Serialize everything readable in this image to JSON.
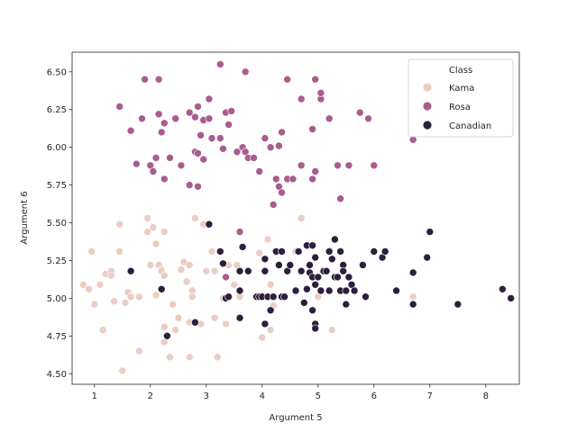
{
  "chart_data": {
    "type": "scatter",
    "title": "",
    "xlabel": "Argument 5",
    "ylabel": "Argument 6",
    "xlim": [
      0.6,
      8.6
    ],
    "ylim": [
      4.43,
      6.63
    ],
    "xticks": [
      "1",
      "2",
      "3",
      "4",
      "5",
      "6",
      "7",
      "8"
    ],
    "yticks": [
      "4.50",
      "4.75",
      "5.00",
      "5.25",
      "5.50",
      "5.75",
      "6.00",
      "6.25",
      "6.50"
    ],
    "grid": false,
    "legend": {
      "title": "Class",
      "placement": "upper right"
    },
    "series": [
      {
        "name": "Kama",
        "color": "#ebcdc3",
        "points": [
          [
            0.8,
            5.09
          ],
          [
            0.9,
            5.06
          ],
          [
            0.95,
            5.31
          ],
          [
            1.0,
            4.96
          ],
          [
            1.1,
            5.09
          ],
          [
            1.15,
            4.79
          ],
          [
            1.2,
            5.16
          ],
          [
            1.3,
            5.18
          ],
          [
            1.3,
            5.15
          ],
          [
            1.35,
            4.98
          ],
          [
            1.45,
            5.49
          ],
          [
            1.45,
            5.31
          ],
          [
            1.5,
            4.52
          ],
          [
            1.55,
            4.97
          ],
          [
            1.6,
            5.04
          ],
          [
            1.65,
            5.01
          ],
          [
            1.8,
            4.65
          ],
          [
            1.8,
            5.01
          ],
          [
            1.95,
            5.44
          ],
          [
            1.95,
            5.53
          ],
          [
            2.0,
            5.22
          ],
          [
            2.0,
            5.88
          ],
          [
            2.05,
            5.47
          ],
          [
            2.1,
            5.36
          ],
          [
            2.1,
            5.02
          ],
          [
            2.15,
            5.22
          ],
          [
            2.2,
            5.19
          ],
          [
            2.2,
            5.18
          ],
          [
            2.25,
            5.15
          ],
          [
            2.25,
            5.44
          ],
          [
            2.25,
            4.81
          ],
          [
            2.25,
            4.71
          ],
          [
            2.35,
            4.61
          ],
          [
            2.4,
            4.96
          ],
          [
            2.45,
            4.79
          ],
          [
            2.5,
            4.87
          ],
          [
            2.55,
            5.19
          ],
          [
            2.6,
            5.24
          ],
          [
            2.65,
            5.11
          ],
          [
            2.7,
            5.22
          ],
          [
            2.7,
            4.61
          ],
          [
            2.7,
            4.84
          ],
          [
            2.75,
            5.05
          ],
          [
            2.75,
            5.01
          ],
          [
            2.8,
            5.53
          ],
          [
            2.9,
            4.83
          ],
          [
            2.95,
            5.49
          ],
          [
            3.0,
            5.18
          ],
          [
            3.05,
            5.49
          ],
          [
            3.1,
            5.31
          ],
          [
            3.15,
            4.87
          ],
          [
            3.15,
            5.18
          ],
          [
            3.2,
            4.61
          ],
          [
            3.3,
            5.0
          ],
          [
            3.35,
            4.83
          ],
          [
            3.4,
            5.22
          ],
          [
            3.5,
            5.09
          ],
          [
            3.55,
            5.22
          ],
          [
            3.6,
            5.01
          ],
          [
            3.95,
            5.3
          ],
          [
            4.0,
            4.74
          ],
          [
            4.1,
            5.39
          ],
          [
            4.15,
            5.09
          ],
          [
            4.15,
            4.79
          ],
          [
            4.2,
            4.95
          ],
          [
            4.35,
            5.01
          ],
          [
            4.45,
            5.18
          ],
          [
            4.6,
            5.31
          ],
          [
            4.7,
            5.53
          ],
          [
            5.0,
            5.01
          ],
          [
            5.25,
            4.79
          ],
          [
            6.7,
            5.01
          ]
        ]
      },
      {
        "name": "Rosa",
        "color": "#a95c8e",
        "points": [
          [
            1.45,
            6.27
          ],
          [
            1.65,
            6.11
          ],
          [
            1.75,
            5.89
          ],
          [
            1.85,
            6.19
          ],
          [
            1.9,
            6.45
          ],
          [
            2.0,
            5.88
          ],
          [
            2.05,
            5.84
          ],
          [
            2.1,
            5.93
          ],
          [
            2.15,
            6.45
          ],
          [
            2.15,
            6.22
          ],
          [
            2.2,
            6.1
          ],
          [
            2.25,
            6.16
          ],
          [
            2.25,
            5.79
          ],
          [
            2.35,
            5.93
          ],
          [
            2.45,
            6.19
          ],
          [
            2.55,
            5.88
          ],
          [
            2.7,
            6.23
          ],
          [
            2.7,
            5.75
          ],
          [
            2.8,
            6.2
          ],
          [
            2.8,
            5.97
          ],
          [
            2.85,
            5.74
          ],
          [
            2.85,
            6.27
          ],
          [
            2.85,
            5.96
          ],
          [
            2.9,
            6.08
          ],
          [
            2.95,
            6.18
          ],
          [
            2.95,
            5.92
          ],
          [
            3.05,
            6.32
          ],
          [
            3.05,
            6.19
          ],
          [
            3.1,
            6.06
          ],
          [
            3.25,
            6.55
          ],
          [
            3.25,
            6.06
          ],
          [
            3.3,
            5.99
          ],
          [
            3.35,
            6.23
          ],
          [
            3.4,
            6.15
          ],
          [
            3.45,
            6.24
          ],
          [
            3.55,
            5.97
          ],
          [
            3.65,
            6.0
          ],
          [
            3.7,
            6.5
          ],
          [
            3.7,
            5.97
          ],
          [
            3.75,
            5.93
          ],
          [
            3.85,
            5.93
          ],
          [
            3.95,
            5.84
          ],
          [
            4.05,
            6.06
          ],
          [
            4.15,
            6.0
          ],
          [
            4.2,
            5.62
          ],
          [
            4.25,
            5.79
          ],
          [
            4.3,
            6.01
          ],
          [
            4.3,
            5.74
          ],
          [
            4.35,
            6.1
          ],
          [
            4.35,
            5.7
          ],
          [
            4.45,
            6.45
          ],
          [
            4.45,
            5.79
          ],
          [
            4.55,
            5.79
          ],
          [
            4.7,
            6.32
          ],
          [
            4.7,
            5.88
          ],
          [
            4.9,
            6.12
          ],
          [
            4.9,
            5.79
          ],
          [
            4.95,
            6.45
          ],
          [
            4.95,
            5.84
          ],
          [
            5.05,
            6.32
          ],
          [
            5.05,
            6.36
          ],
          [
            5.2,
            6.19
          ],
          [
            5.35,
            5.88
          ],
          [
            5.4,
            5.66
          ],
          [
            5.55,
            5.88
          ],
          [
            5.75,
            6.23
          ],
          [
            5.9,
            6.19
          ],
          [
            6.0,
            5.88
          ],
          [
            6.7,
            6.05
          ],
          [
            3.35,
            5.14
          ],
          [
            3.6,
            5.44
          ]
        ]
      },
      {
        "name": "Canadian",
        "color": "#2d1e3e",
        "points": [
          [
            1.65,
            5.18
          ],
          [
            2.2,
            5.06
          ],
          [
            2.3,
            4.75
          ],
          [
            2.8,
            4.84
          ],
          [
            3.05,
            5.49
          ],
          [
            3.25,
            5.31
          ],
          [
            3.3,
            5.23
          ],
          [
            3.35,
            5.0
          ],
          [
            3.4,
            5.01
          ],
          [
            3.6,
            5.05
          ],
          [
            3.6,
            5.18
          ],
          [
            3.6,
            4.87
          ],
          [
            3.65,
            5.34
          ],
          [
            3.75,
            5.18
          ],
          [
            3.9,
            5.01
          ],
          [
            3.95,
            5.01
          ],
          [
            4.0,
            5.01
          ],
          [
            4.05,
            4.83
          ],
          [
            4.05,
            5.26
          ],
          [
            4.05,
            5.18
          ],
          [
            4.1,
            5.01
          ],
          [
            4.15,
            4.92
          ],
          [
            4.2,
            5.01
          ],
          [
            4.25,
            5.31
          ],
          [
            4.3,
            5.22
          ],
          [
            4.35,
            5.31
          ],
          [
            4.35,
            5.01
          ],
          [
            4.4,
            5.01
          ],
          [
            4.45,
            5.18
          ],
          [
            4.5,
            5.22
          ],
          [
            4.6,
            5.05
          ],
          [
            4.65,
            5.31
          ],
          [
            4.7,
            5.18
          ],
          [
            4.75,
            4.97
          ],
          [
            4.8,
            5.35
          ],
          [
            4.8,
            5.06
          ],
          [
            4.85,
            5.22
          ],
          [
            4.85,
            5.17
          ],
          [
            4.9,
            5.14
          ],
          [
            4.9,
            4.92
          ],
          [
            4.9,
            5.35
          ],
          [
            4.95,
            5.27
          ],
          [
            4.95,
            5.09
          ],
          [
            4.95,
            4.83
          ],
          [
            4.95,
            4.8
          ],
          [
            5.0,
            5.14
          ],
          [
            5.05,
            5.05
          ],
          [
            5.1,
            5.18
          ],
          [
            5.15,
            5.18
          ],
          [
            5.2,
            5.05
          ],
          [
            5.2,
            5.31
          ],
          [
            5.25,
            5.26
          ],
          [
            5.3,
            5.14
          ],
          [
            5.3,
            5.39
          ],
          [
            5.35,
            5.14
          ],
          [
            5.4,
            5.05
          ],
          [
            5.4,
            5.31
          ],
          [
            5.45,
            5.22
          ],
          [
            5.45,
            5.18
          ],
          [
            5.5,
            5.05
          ],
          [
            5.5,
            4.96
          ],
          [
            5.55,
            5.14
          ],
          [
            5.6,
            5.09
          ],
          [
            5.65,
            5.05
          ],
          [
            5.8,
            5.22
          ],
          [
            5.85,
            5.01
          ],
          [
            6.0,
            5.31
          ],
          [
            6.15,
            5.27
          ],
          [
            6.2,
            5.31
          ],
          [
            6.4,
            5.05
          ],
          [
            6.7,
            4.96
          ],
          [
            6.7,
            5.17
          ],
          [
            6.95,
            5.27
          ],
          [
            7.0,
            5.44
          ],
          [
            7.5,
            4.96
          ],
          [
            8.3,
            5.06
          ],
          [
            8.45,
            5.0
          ]
        ]
      }
    ]
  }
}
